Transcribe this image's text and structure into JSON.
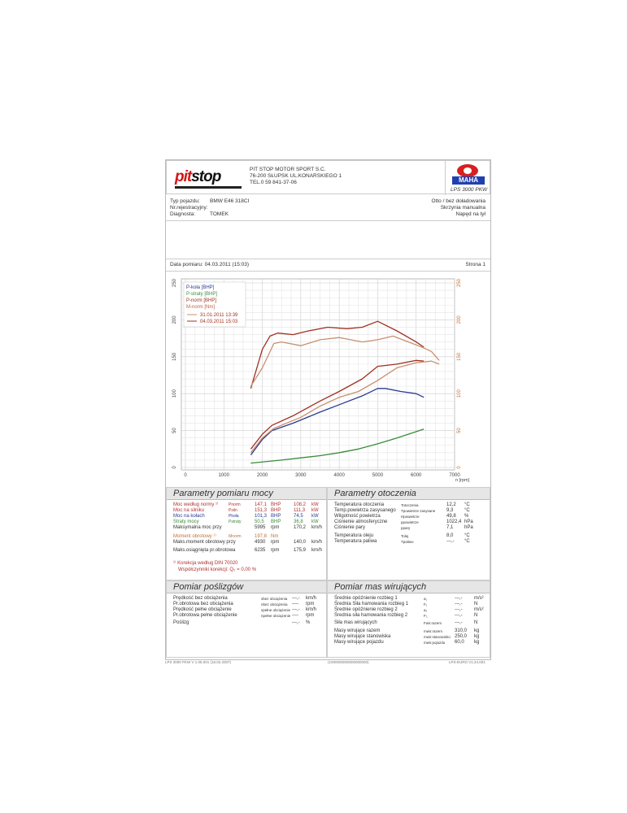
{
  "header": {
    "company": [
      "PIT STOP MOTOR SPORT S.C.",
      "76-200 SŁUPSK UL.KONARSKIEGO 1",
      "TEL.0 59 841-37-06"
    ],
    "logo_left": "pitstop",
    "logo_right": "MAHA",
    "model": "LPS 3000 PKW"
  },
  "vehicle": {
    "type_label": "Typ pojazdu:",
    "type_value": "BMW E46 318CI",
    "reg_label": "Nr.rejestracyjny:",
    "diag_label": "Diagnosta:",
    "diag_value": "TOMEK",
    "right": [
      "Otto / bez doładowania",
      "Skrzynia manualna",
      "Napęd na tył"
    ]
  },
  "date_line": {
    "label": "Data pomiaru: 04.03.2011 (15:03)",
    "page": "Strona 1"
  },
  "chart_data": {
    "type": "line",
    "xlabel": "n [rpm]",
    "xlim": [
      0,
      7000
    ],
    "ylim": [
      0,
      250
    ],
    "xticks": [
      "0",
      "1000",
      "2000",
      "3000",
      "4000",
      "5000",
      "6000",
      "7000"
    ],
    "yticks": [
      "0",
      "50",
      "100",
      "150",
      "200",
      "250"
    ],
    "grid": true,
    "legend": "top-left",
    "legend_entries": [
      {
        "label": "P-koła [BHP]",
        "color": "#2a3a90"
      },
      {
        "label": "P-straty [BHP]",
        "color": "#3a8a3a"
      },
      {
        "label": "P-norm [BHP]",
        "color": "#a03020"
      },
      {
        "label": "M-norm [Nm]",
        "color": "#c06040"
      }
    ],
    "runs": [
      {
        "label": "31.01.2011 13:39",
        "color": "#c89070"
      },
      {
        "label": "04.03.2011 15:03",
        "color": "#a03020"
      }
    ],
    "series": [
      {
        "name": "P-koła [BHP]",
        "color": "#2a3a90",
        "x": [
          1700,
          2000,
          2250,
          2800,
          3500,
          4000,
          4600,
          5000,
          5200,
          5600,
          6000,
          6200
        ],
        "y": [
          17,
          38,
          50,
          60,
          75,
          85,
          97,
          107,
          107,
          103,
          100,
          95
        ]
      },
      {
        "name": "P-straty [BHP]",
        "color": "#3a8a3a",
        "x": [
          1700,
          2500,
          3000,
          3500,
          4000,
          4500,
          5000,
          5500,
          6200
        ],
        "y": [
          6,
          10,
          13,
          16,
          20,
          25,
          32,
          40,
          52
        ]
      },
      {
        "name": "P-norm [BHP]",
        "run": "04.03.2011 15:03",
        "color": "#a03020",
        "x": [
          1700,
          2000,
          2250,
          2800,
          3500,
          4000,
          4600,
          5000,
          5500,
          6000,
          6200
        ],
        "y": [
          25,
          45,
          57,
          70,
          90,
          103,
          120,
          137,
          140,
          145,
          144
        ]
      },
      {
        "name": "P-norm [BHP]",
        "run": "31.01.2011 13:39",
        "color": "#c89070",
        "x": [
          1700,
          2000,
          2300,
          3000,
          3500,
          4000,
          4500,
          5000,
          5500,
          6000,
          6400,
          6600
        ],
        "y": [
          20,
          40,
          53,
          68,
          83,
          95,
          103,
          118,
          135,
          142,
          144,
          140
        ]
      },
      {
        "name": "M-norm [Nm]",
        "run": "04.03.2011 15:03",
        "color": "#a03020",
        "x": [
          1700,
          2000,
          2200,
          2400,
          2800,
          3200,
          3700,
          4200,
          4600,
          5000,
          5500,
          6000,
          6200
        ],
        "y": [
          107,
          160,
          178,
          182,
          180,
          185,
          190,
          188,
          190,
          198,
          185,
          170,
          163
        ]
      },
      {
        "name": "M-norm [Nm]",
        "run": "31.01.2011 13:39",
        "color": "#c89070",
        "x": [
          1700,
          2000,
          2300,
          2500,
          3000,
          3500,
          4000,
          4200,
          4600,
          5000,
          5400,
          5800,
          6200,
          6400,
          6600
        ],
        "y": [
          110,
          135,
          168,
          170,
          165,
          173,
          176,
          174,
          170,
          173,
          178,
          170,
          162,
          157,
          145
        ]
      }
    ]
  },
  "power": {
    "title": "Parametry pomiaru mocy",
    "rows": [
      {
        "label": "Moc według normy ¹⁾",
        "sym": "Pnorm",
        "val": "147,1",
        "u1": "BHP",
        "val2": "108,2",
        "u2": "kW",
        "cls": "red"
      },
      {
        "label": "Moc na silniku",
        "sym": "Psiln",
        "val": "151,3",
        "u1": "BHP",
        "val2": "111,3",
        "u2": "kW",
        "cls": "red"
      },
      {
        "label": "Moc na kołach",
        "sym": "Pkoła",
        "val": "101,3",
        "u1": "BHP",
        "val2": "74,5",
        "u2": "kW",
        "cls": "blue"
      },
      {
        "label": "Straty mocy",
        "sym": "Pstraty",
        "val": "50,5",
        "u1": "BHP",
        "val2": "36,8",
        "u2": "kW",
        "cls": "green"
      },
      {
        "label": "Maksymalna moc przy",
        "sym": "",
        "val": "5995",
        "u1": "rpm",
        "val2": "170,2",
        "u2": "km/h",
        "cls": ""
      },
      {
        "label": "Moment obrotowy ¹⁾",
        "sym": "Mnorm",
        "val": "197,8",
        "u1": "Nm",
        "val2": "",
        "u2": "",
        "cls": "orange"
      },
      {
        "label": "Maks.moment obrotowy przy",
        "sym": "",
        "val": "4930",
        "u1": "rpm",
        "val2": "140,0",
        "u2": "km/h",
        "cls": ""
      },
      {
        "label": "Maks.osiągnięta pr.obrotowa",
        "sym": "",
        "val": "6235",
        "u1": "rpm",
        "val2": "175,9",
        "u2": "km/h",
        "cls": ""
      }
    ],
    "note1": "¹⁾ Korekcja według DIN 70020",
    "note2": "Współczynniki korekcji: Q₀ =   0,00 %"
  },
  "ambient": {
    "title": "Parametry otoczenia",
    "rows": [
      {
        "label": "Temperatura otoczenia",
        "sym": "Totoczenia",
        "val": "12,2",
        "u": "°C"
      },
      {
        "label": "Temp.powietrza zasysanego",
        "sym": "Tpowietrze zasysane",
        "val": "9,3",
        "u": "°C"
      },
      {
        "label": "Wilgotność powietrza",
        "sym": "Hpowietrze",
        "val": "49,8",
        "u": "%"
      },
      {
        "label": "Ciśnienie atmosferyczne",
        "sym": "ppowietrze",
        "val": "1022,4",
        "u": "hPa"
      },
      {
        "label": "Ciśnienie pary",
        "sym": "ppary",
        "val": "7,1",
        "u": "hPa"
      },
      {
        "label": "Temperatura oleju",
        "sym": "Tolej",
        "val": "8,0",
        "u": "°C"
      },
      {
        "label": "Temperatura paliwa",
        "sym": "Tpaliwo",
        "val": "---,-",
        "u": "°C"
      }
    ]
  },
  "slip": {
    "title": "Pomiar poślizgów",
    "rows": [
      {
        "label": "Prędkość bez obciążenia",
        "sym": "vbez obciążenia",
        "val": "---,-",
        "u": "km/h"
      },
      {
        "label": "Pr.obrotowa bez obciążenia",
        "sym": "nbez obciążenia",
        "val": "----",
        "u": "rpm"
      },
      {
        "label": "Prędkość pełne obciążenie",
        "sym": "vpełne obciążenie",
        "val": "---,-",
        "u": "km/h"
      },
      {
        "label": "Pr.obrotowa pełne obciążenie",
        "sym": "npełne obciążenie",
        "val": "----",
        "u": "rpm"
      },
      {
        "label": "Poślizg",
        "sym": "",
        "val": "---,-",
        "u": "%"
      }
    ]
  },
  "mass": {
    "title": "Pomiar mas wirujących",
    "rows": [
      {
        "label": "Średnie opóźnienie rozbieg 1",
        "sym": "a₁",
        "val": "---,-",
        "u": "m/s²"
      },
      {
        "label": "Średnia Siła hamowania rozbieg 1",
        "sym": "F₁",
        "val": "---,-",
        "u": "N"
      },
      {
        "label": "Średnie opóźnienie rozbieg 2",
        "sym": "a₂",
        "val": "---,-",
        "u": "m/s²"
      },
      {
        "label": "Średnia siła hamowania rozbieg 2",
        "sym": "F₂",
        "val": "---,-",
        "u": "N"
      },
      {
        "label": "Siła mas wirujących",
        "sym": "Fwir.razem",
        "val": "---,-",
        "u": "N"
      },
      {
        "label": "Masy wirujące razem",
        "sym": "mwir.razem",
        "val": "310,0",
        "u": "kg"
      },
      {
        "label": "Masy wirujące stanowiska",
        "sym": "mwir.stanowisko",
        "val": "250,0",
        "u": "kg"
      },
      {
        "label": "Masy wirujące pojazdu",
        "sym": "mwir.pojazdu",
        "val": "60,0",
        "u": "kg"
      }
    ]
  },
  "footer": {
    "left": "LPS 3000 PKW V 1.08.001 (18.02.2007)",
    "center": "(1000000000000000000)",
    "right": "LPS-EURO V1.24.001"
  }
}
